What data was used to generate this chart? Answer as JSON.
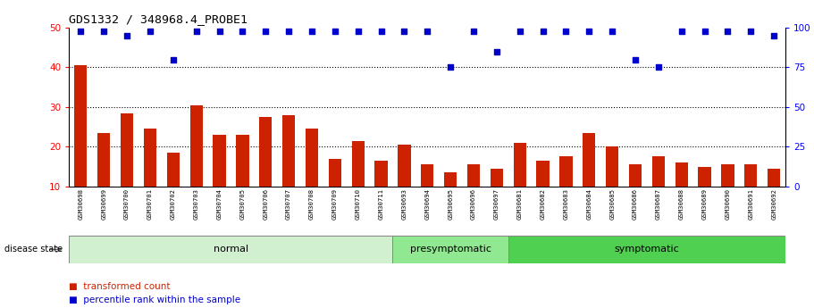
{
  "title": "GDS1332 / 348968.4_PROBE1",
  "samples": [
    "GSM30698",
    "GSM30699",
    "GSM30700",
    "GSM30701",
    "GSM30702",
    "GSM30703",
    "GSM30704",
    "GSM30705",
    "GSM30706",
    "GSM30707",
    "GSM30708",
    "GSM30709",
    "GSM30710",
    "GSM30711",
    "GSM30693",
    "GSM30694",
    "GSM30695",
    "GSM30696",
    "GSM30697",
    "GSM30681",
    "GSM30682",
    "GSM30683",
    "GSM30684",
    "GSM30685",
    "GSM30686",
    "GSM30687",
    "GSM30688",
    "GSM30689",
    "GSM30690",
    "GSM30691",
    "GSM30692"
  ],
  "bar_values": [
    40.5,
    23.5,
    28.5,
    24.5,
    18.5,
    30.5,
    23.0,
    23.0,
    27.5,
    28.0,
    24.5,
    17.0,
    21.5,
    16.5,
    20.5,
    15.5,
    13.5,
    15.5,
    14.5,
    21.0,
    16.5,
    17.5,
    23.5,
    20.0,
    15.5,
    17.5,
    16.0,
    15.0,
    15.5,
    15.5,
    14.5
  ],
  "percentile_values": [
    98,
    98,
    95,
    98,
    80,
    98,
    98,
    98,
    98,
    98,
    98,
    98,
    98,
    98,
    98,
    98,
    75,
    98,
    85,
    98,
    98,
    98,
    98,
    98,
    80,
    75,
    98,
    98,
    98,
    98,
    95
  ],
  "groups": [
    {
      "label": "normal",
      "start": 0,
      "end": 13,
      "color": "#d0f0d0"
    },
    {
      "label": "presymptomatic",
      "start": 14,
      "end": 18,
      "color": "#90e890"
    },
    {
      "label": "symptomatic",
      "start": 19,
      "end": 30,
      "color": "#50d050"
    }
  ],
  "bar_color": "#cc2200",
  "dot_color": "#0000cc",
  "ylim_left": [
    10,
    50
  ],
  "ylim_right": [
    0,
    100
  ],
  "yticks_left": [
    10,
    20,
    30,
    40,
    50
  ],
  "yticks_right": [
    0,
    25,
    50,
    75,
    100
  ],
  "grid_lines": [
    20,
    30,
    40
  ],
  "xtick_bg_color": "#c0c0c0",
  "legend_items": [
    {
      "color": "#cc2200",
      "label": "transformed count"
    },
    {
      "color": "#0000cc",
      "label": "percentile rank within the sample"
    }
  ],
  "disease_state_label": "disease state",
  "background_color": "#ffffff"
}
